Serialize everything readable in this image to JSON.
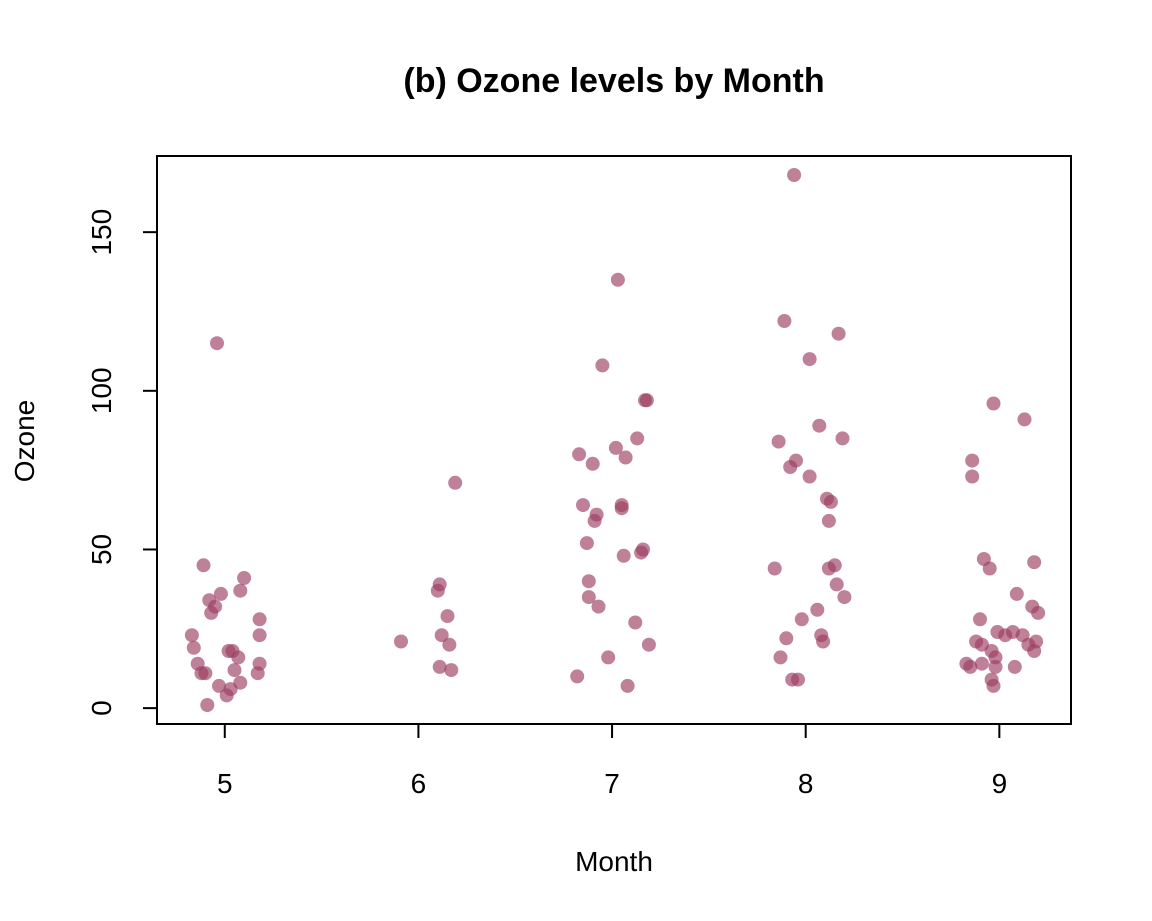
{
  "chart_data": {
    "type": "scatter",
    "title": "(b) Ozone levels by Month",
    "xlabel": "Month",
    "ylabel": "Ozone",
    "x_ticks": [
      "5",
      "6",
      "7",
      "8",
      "9"
    ],
    "y_ticks": [
      "0",
      "50",
      "100",
      "150"
    ],
    "y_tick_values": [
      0,
      50,
      100,
      150
    ],
    "xlim": [
      4.65,
      9.37
    ],
    "ylim": [
      -5,
      174
    ],
    "point_color": "#9b3d5f",
    "point_opacity": 0.65,
    "jitter": true,
    "points": [
      {
        "x": 4.83,
        "y": 23
      },
      {
        "x": 4.84,
        "y": 19
      },
      {
        "x": 4.86,
        "y": 14
      },
      {
        "x": 4.88,
        "y": 11
      },
      {
        "x": 4.89,
        "y": 45
      },
      {
        "x": 4.9,
        "y": 11
      },
      {
        "x": 4.91,
        "y": 1
      },
      {
        "x": 4.92,
        "y": 34
      },
      {
        "x": 4.93,
        "y": 30
      },
      {
        "x": 4.95,
        "y": 32
      },
      {
        "x": 4.96,
        "y": 115
      },
      {
        "x": 4.97,
        "y": 7
      },
      {
        "x": 4.98,
        "y": 36
      },
      {
        "x": 5.01,
        "y": 4
      },
      {
        "x": 5.02,
        "y": 18
      },
      {
        "x": 5.03,
        "y": 6
      },
      {
        "x": 5.04,
        "y": 18
      },
      {
        "x": 5.05,
        "y": 12
      },
      {
        "x": 5.07,
        "y": 16
      },
      {
        "x": 5.08,
        "y": 8
      },
      {
        "x": 5.08,
        "y": 37
      },
      {
        "x": 5.1,
        "y": 41
      },
      {
        "x": 5.17,
        "y": 11
      },
      {
        "x": 5.18,
        "y": 14
      },
      {
        "x": 5.18,
        "y": 28
      },
      {
        "x": 5.18,
        "y": 23
      },
      {
        "x": 5.91,
        "y": 21
      },
      {
        "x": 6.1,
        "y": 37
      },
      {
        "x": 6.11,
        "y": 39
      },
      {
        "x": 6.11,
        "y": 13
      },
      {
        "x": 6.12,
        "y": 23
      },
      {
        "x": 6.15,
        "y": 29
      },
      {
        "x": 6.16,
        "y": 20
      },
      {
        "x": 6.17,
        "y": 12
      },
      {
        "x": 6.19,
        "y": 71
      },
      {
        "x": 6.82,
        "y": 10
      },
      {
        "x": 6.83,
        "y": 80
      },
      {
        "x": 6.85,
        "y": 64
      },
      {
        "x": 6.87,
        "y": 52
      },
      {
        "x": 6.88,
        "y": 40
      },
      {
        "x": 6.88,
        "y": 35
      },
      {
        "x": 6.9,
        "y": 77
      },
      {
        "x": 6.91,
        "y": 59
      },
      {
        "x": 6.92,
        "y": 61
      },
      {
        "x": 6.93,
        "y": 32
      },
      {
        "x": 6.95,
        "y": 108
      },
      {
        "x": 6.98,
        "y": 16
      },
      {
        "x": 7.02,
        "y": 82
      },
      {
        "x": 7.03,
        "y": 135
      },
      {
        "x": 7.05,
        "y": 63
      },
      {
        "x": 7.05,
        "y": 64
      },
      {
        "x": 7.06,
        "y": 48
      },
      {
        "x": 7.07,
        "y": 79
      },
      {
        "x": 7.08,
        "y": 7
      },
      {
        "x": 7.12,
        "y": 27
      },
      {
        "x": 7.13,
        "y": 85
      },
      {
        "x": 7.15,
        "y": 49
      },
      {
        "x": 7.16,
        "y": 50
      },
      {
        "x": 7.17,
        "y": 97
      },
      {
        "x": 7.18,
        "y": 97
      },
      {
        "x": 7.19,
        "y": 20
      },
      {
        "x": 7.84,
        "y": 44
      },
      {
        "x": 7.86,
        "y": 84
      },
      {
        "x": 7.87,
        "y": 16
      },
      {
        "x": 7.89,
        "y": 122
      },
      {
        "x": 7.9,
        "y": 22
      },
      {
        "x": 7.92,
        "y": 76
      },
      {
        "x": 7.93,
        "y": 9
      },
      {
        "x": 7.94,
        "y": 168
      },
      {
        "x": 7.95,
        "y": 78
      },
      {
        "x": 7.96,
        "y": 9
      },
      {
        "x": 7.98,
        "y": 28
      },
      {
        "x": 8.02,
        "y": 73
      },
      {
        "x": 8.02,
        "y": 110
      },
      {
        "x": 8.06,
        "y": 31
      },
      {
        "x": 8.07,
        "y": 89
      },
      {
        "x": 8.08,
        "y": 23
      },
      {
        "x": 8.09,
        "y": 21
      },
      {
        "x": 8.11,
        "y": 66
      },
      {
        "x": 8.12,
        "y": 59
      },
      {
        "x": 8.12,
        "y": 44
      },
      {
        "x": 8.13,
        "y": 65
      },
      {
        "x": 8.15,
        "y": 45
      },
      {
        "x": 8.16,
        "y": 39
      },
      {
        "x": 8.17,
        "y": 118
      },
      {
        "x": 8.19,
        "y": 85
      },
      {
        "x": 8.2,
        "y": 35
      },
      {
        "x": 8.83,
        "y": 14
      },
      {
        "x": 8.85,
        "y": 13
      },
      {
        "x": 8.86,
        "y": 78
      },
      {
        "x": 8.86,
        "y": 73
      },
      {
        "x": 8.88,
        "y": 21
      },
      {
        "x": 8.9,
        "y": 28
      },
      {
        "x": 8.91,
        "y": 14
      },
      {
        "x": 8.91,
        "y": 20
      },
      {
        "x": 8.92,
        "y": 47
      },
      {
        "x": 8.95,
        "y": 44
      },
      {
        "x": 8.96,
        "y": 18
      },
      {
        "x": 8.96,
        "y": 9
      },
      {
        "x": 8.97,
        "y": 96
      },
      {
        "x": 8.97,
        "y": 7
      },
      {
        "x": 8.98,
        "y": 16
      },
      {
        "x": 8.98,
        "y": 13
      },
      {
        "x": 8.99,
        "y": 24
      },
      {
        "x": 9.03,
        "y": 23
      },
      {
        "x": 9.07,
        "y": 24
      },
      {
        "x": 9.08,
        "y": 13
      },
      {
        "x": 9.09,
        "y": 36
      },
      {
        "x": 9.12,
        "y": 23
      },
      {
        "x": 9.13,
        "y": 91
      },
      {
        "x": 9.15,
        "y": 20
      },
      {
        "x": 9.17,
        "y": 32
      },
      {
        "x": 9.18,
        "y": 18
      },
      {
        "x": 9.18,
        "y": 46
      },
      {
        "x": 9.19,
        "y": 21
      },
      {
        "x": 9.2,
        "y": 30
      }
    ]
  }
}
